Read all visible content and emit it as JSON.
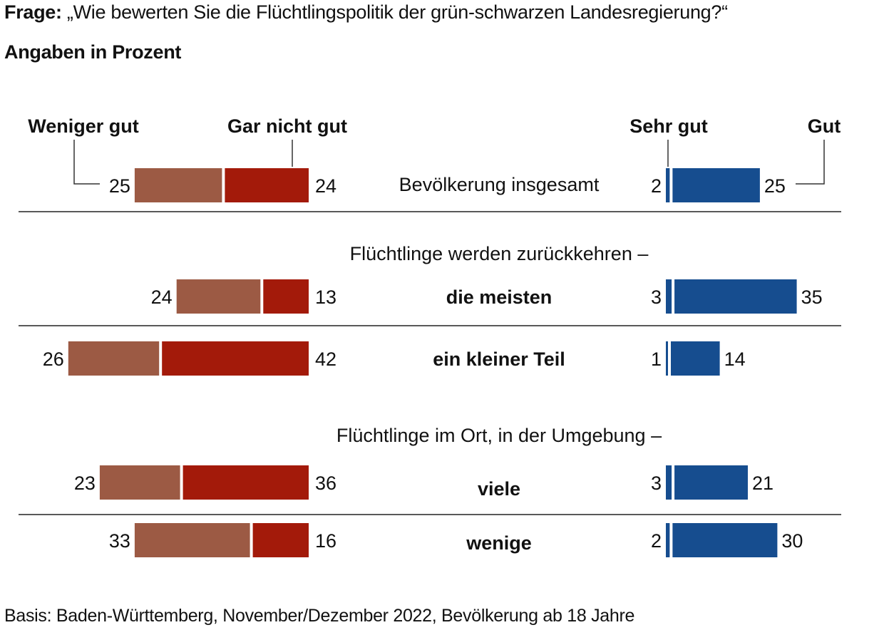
{
  "question": {
    "prefix": "Frage:",
    "text": "„Wie bewerten Sie die Flüchtlingspolitik der grün-schwarzen Landesregierung?“"
  },
  "subtitle": "Angaben in Prozent",
  "footer": "Basis: Baden-Württemberg, November/Dezember 2022, Bevölkerung ab 18 Jahre",
  "chart_data": {
    "type": "bar",
    "orientation": "horizontal-diverging",
    "categories": [
      "Bevölkerung insgesamt",
      "die meisten",
      "ein kleiner Teil",
      "viele",
      "wenige"
    ],
    "groups": [
      {
        "heading": "Flüchtlinge werden zurückkehren –",
        "categories": [
          "die meisten",
          "ein kleiner Teil"
        ]
      },
      {
        "heading": "Flüchtlinge im Ort, in der Umgebung –",
        "categories": [
          "viele",
          "wenige"
        ]
      }
    ],
    "series": [
      {
        "name": "Weniger gut",
        "side": "negative",
        "color": "#9c5a44",
        "values": [
          25,
          24,
          26,
          23,
          33
        ]
      },
      {
        "name": "Gar nicht gut",
        "side": "negative",
        "color": "#a31a0a",
        "values": [
          24,
          13,
          42,
          36,
          16
        ]
      },
      {
        "name": "Sehr gut",
        "side": "positive",
        "color": "#164d8f",
        "values": [
          2,
          3,
          1,
          3,
          2
        ]
      },
      {
        "name": "Gut",
        "side": "positive",
        "color": "#164d8f",
        "values": [
          25,
          35,
          14,
          21,
          30
        ]
      }
    ],
    "unit": "Prozent",
    "legend_position": "top"
  }
}
